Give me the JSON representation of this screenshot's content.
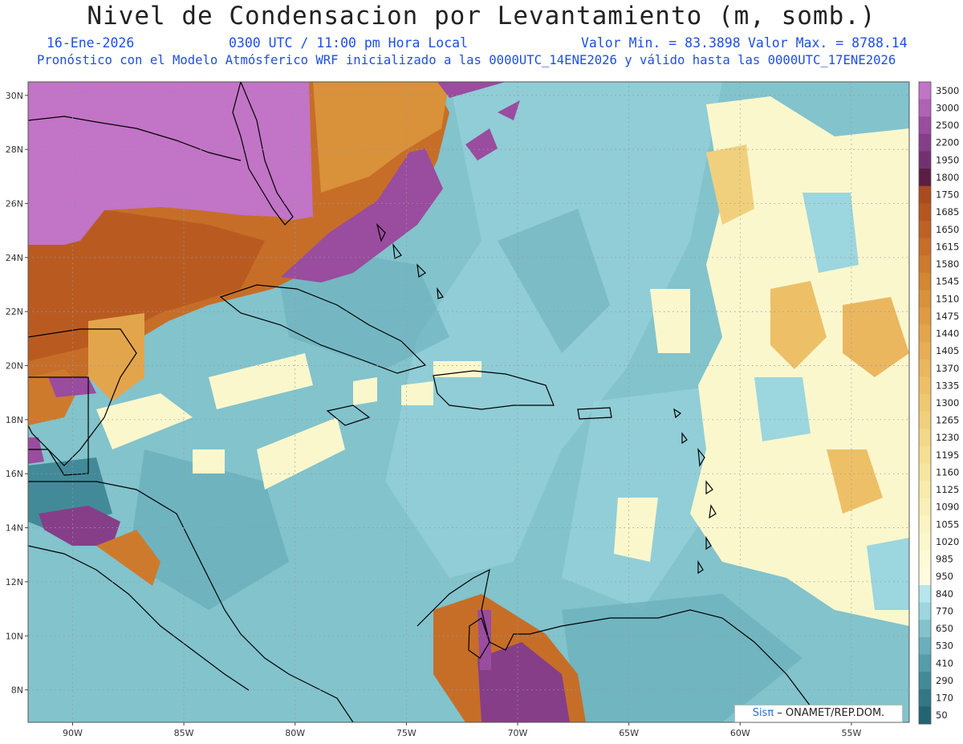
{
  "header": {
    "title": "Nivel de Condensacion por Levantamiento (m, somb.)",
    "date": "16-Ene-2026",
    "time": "0300 UTC / 11:00 pm Hora Local",
    "min_label": "Valor Min. = 83.3898",
    "max_label": "Valor Max. = 8788.14",
    "model_line": "Pronóstico con el Modelo Atmósferico WRF inicializado a las 0000UTC_14ENE2026 y válido hasta las  0000UTC_17ENE2026"
  },
  "map": {
    "lat_labels": [
      "30N",
      "28N",
      "26N",
      "24N",
      "22N",
      "20N",
      "18N",
      "16N",
      "14N",
      "12N",
      "10N",
      "8N"
    ],
    "lat_values": [
      30,
      28,
      26,
      24,
      22,
      20,
      18,
      16,
      14,
      12,
      10,
      8
    ],
    "lon_labels": [
      "90W",
      "85W",
      "80W",
      "75W",
      "70W",
      "65W",
      "60W",
      "55W"
    ],
    "lon_values": [
      -90,
      -85,
      -80,
      -75,
      -70,
      -65,
      -60,
      -55
    ],
    "extent": {
      "lon_min": -92,
      "lon_max": -52.4,
      "lat_min": 6.8,
      "lat_max": 30.5
    }
  },
  "colorbar": {
    "labels": [
      "3500",
      "3000",
      "2500",
      "2200",
      "1950",
      "1800",
      "1750",
      "1685",
      "1650",
      "1615",
      "1580",
      "1545",
      "1510",
      "1475",
      "1440",
      "1405",
      "1370",
      "1335",
      "1300",
      "1265",
      "1230",
      "1195",
      "1160",
      "1125",
      "1090",
      "1055",
      "1020",
      "985",
      "950",
      "840",
      "770",
      "650",
      "530",
      "410",
      "290",
      "170",
      "50"
    ],
    "colors": [
      "#c274c6",
      "#b062b4",
      "#9a4c9e",
      "#863e88",
      "#733070",
      "#5c1e42",
      "#a84b1e",
      "#b4561f",
      "#bd6224",
      "#c66e28",
      "#ce7a2d",
      "#d48633",
      "#d9913a",
      "#de9b42",
      "#e3a54c",
      "#e7ae55",
      "#eab75f",
      "#edc068",
      "#efc872",
      "#f1d07d",
      "#f3d888",
      "#f5df93",
      "#f6e59f",
      "#f8ebab",
      "#f9f0b7",
      "#faf4c3",
      "#fbf7cd",
      "#fcf9d6",
      "#fdfbdf",
      "#b6e6ec",
      "#9cd6de",
      "#82c3cc",
      "#6aafbb",
      "#569daa",
      "#438a98",
      "#327786",
      "#236473"
    ]
  },
  "credit": {
    "sis": "Sisπ",
    "rest": " – ONAMET/REP.DOM."
  }
}
